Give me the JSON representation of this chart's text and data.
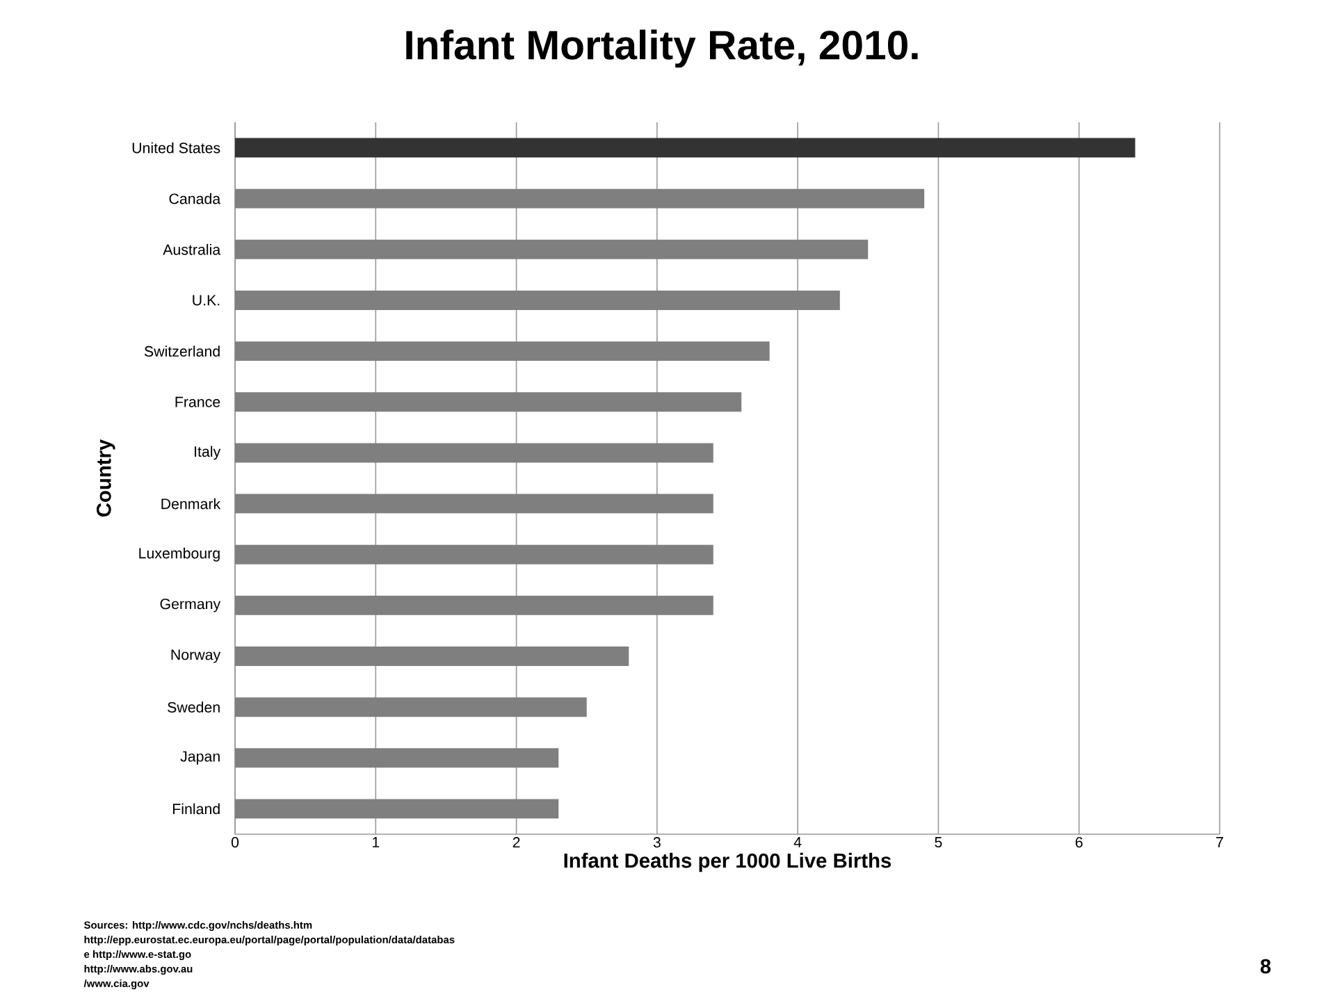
{
  "chart_data": {
    "type": "bar",
    "orientation": "horizontal",
    "title": "Infant Mortality Rate, 2010.",
    "xlabel": "Infant Deaths per 1000 Live Births",
    "ylabel": "Country",
    "categories": [
      "United States",
      "Canada",
      "Australia",
      "U.K.",
      "Switzerland",
      "France",
      "Italy",
      "Denmark",
      "Luxembourg",
      "Germany",
      "Norway",
      "Sweden",
      "Japan",
      "Finland"
    ],
    "values": [
      6.4,
      4.9,
      4.5,
      4.3,
      3.8,
      3.6,
      3.4,
      3.4,
      3.4,
      3.4,
      2.8,
      2.5,
      2.3,
      2.3
    ],
    "colors": [
      "#333333",
      "#7f7f7f",
      "#7f7f7f",
      "#7f7f7f",
      "#7f7f7f",
      "#7f7f7f",
      "#7f7f7f",
      "#7f7f7f",
      "#7f7f7f",
      "#7f7f7f",
      "#7f7f7f",
      "#7f7f7f",
      "#7f7f7f",
      "#7f7f7f"
    ],
    "xlim": [
      0,
      7
    ],
    "xticks": [
      0,
      1,
      2,
      3,
      4,
      5,
      6,
      7
    ],
    "grid": "x",
    "annotations": [
      "Sources: http://www.cdc.gov/nchs/deaths.htm",
      "http://epp.eurostat.ec.europa.eu/portal/page/portal/population/data/databas",
      "e http://www.e-stat.go",
      "http://www.abs.gov.au",
      "/www.cia.gov",
      "8"
    ]
  }
}
